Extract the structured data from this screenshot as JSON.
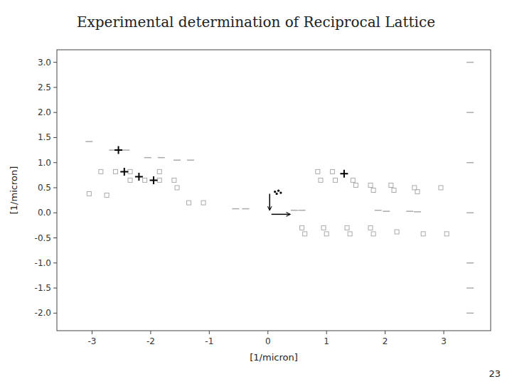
{
  "chart_data": {
    "type": "scatter",
    "title": "Experimental determination of  Reciprocal Lattice",
    "xlabel": "[1/micron]",
    "ylabel": "[1/micron]",
    "annotations": [
      "23"
    ],
    "xlim": [
      -3.6,
      3.8
    ],
    "ylim": [
      -2.35,
      3.25
    ],
    "xticks": [
      -3,
      -2,
      -1,
      0,
      1,
      2,
      3
    ],
    "yticks": [
      {
        "value": -2,
        "label": "-2.0"
      },
      -1.5,
      {
        "value": -1,
        "label": "-1.0"
      },
      -0.5,
      {
        "value": 0,
        "label": "0.0"
      },
      0.5,
      {
        "value": 1,
        "label": "1.0"
      },
      1.5,
      {
        "value": 2,
        "label": "2.0"
      },
      2.5,
      {
        "value": 3,
        "label": "3.0"
      }
    ],
    "grid": false,
    "series": [
      {
        "type": "scatter",
        "marker": "square",
        "color": "#aaaaaa",
        "x": [
          -2.85,
          -2.6,
          -2.35,
          -2.35,
          -2.1,
          -1.85,
          -1.85,
          -1.6,
          -1.55,
          -1.35,
          -1.1,
          -3.05,
          -2.75,
          0.85,
          0.9,
          1.1,
          1.15,
          1.45,
          1.5,
          1.75,
          1.8,
          2.1,
          2.15,
          2.5,
          2.55,
          2.95,
          0.58,
          0.63,
          0.95,
          1.0,
          1.35,
          1.4,
          1.75,
          1.8,
          2.2,
          2.65,
          3.05
        ],
        "values": [
          0.82,
          0.82,
          0.82,
          0.65,
          0.65,
          0.82,
          0.65,
          0.65,
          0.5,
          0.2,
          0.2,
          0.38,
          0.35,
          0.82,
          0.65,
          0.82,
          0.65,
          0.65,
          0.55,
          0.55,
          0.45,
          0.55,
          0.45,
          0.5,
          0.42,
          0.5,
          -0.3,
          -0.42,
          -0.3,
          -0.42,
          -0.3,
          -0.42,
          -0.3,
          -0.42,
          -0.38,
          -0.42,
          -0.42
        ]
      },
      {
        "type": "scatter",
        "marker": "dash",
        "color": "#aaaaaa",
        "x": [
          -3.05,
          -2.65,
          -2.42,
          -2.05,
          -1.82,
          -1.55,
          -1.32,
          -0.55,
          -0.38,
          0.45,
          0.58,
          1.88,
          2.02,
          2.42,
          2.55,
          3.45,
          3.45,
          3.45,
          3.45,
          3.45,
          3.45,
          3.45
        ],
        "values": [
          1.42,
          1.25,
          1.25,
          1.1,
          1.1,
          1.05,
          1.05,
          0.08,
          0.08,
          0.05,
          0.05,
          0.05,
          0.03,
          0.03,
          0.02,
          3.0,
          2.0,
          1.0,
          0.0,
          -1.0,
          -1.5,
          -2.0
        ]
      },
      {
        "type": "scatter",
        "marker": "plus",
        "color": "#000000",
        "x": [
          -2.55,
          -2.45,
          -2.2,
          -1.95,
          1.3
        ],
        "values": [
          1.25,
          0.82,
          0.72,
          0.65,
          0.78
        ]
      },
      {
        "type": "arrow",
        "color": "#000000",
        "x": [
          0.03,
          0.03
        ],
        "values": [
          0.38,
          0.05
        ]
      },
      {
        "type": "arrow",
        "color": "#000000",
        "x": [
          0.06,
          0.38
        ],
        "values": [
          -0.03,
          -0.03
        ]
      },
      {
        "type": "scatter",
        "marker": "dot",
        "color": "#000000",
        "x": [
          0.12,
          0.18,
          0.22,
          0.15
        ],
        "values": [
          0.42,
          0.44,
          0.4,
          0.38
        ]
      }
    ]
  }
}
